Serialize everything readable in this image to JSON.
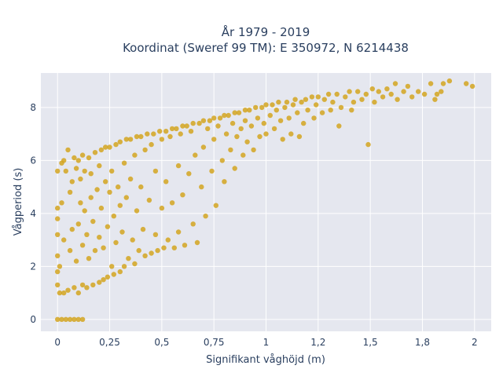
{
  "chart_data": {
    "type": "scatter",
    "title_lines": [
      "År 1979 - 2019",
      "Koordinat (Sweref 99 TM): E 350972, N 6214438"
    ],
    "xlabel": "Signifikant våghöjd (m)",
    "ylabel": "Vågperiod (s)",
    "xlim": [
      -0.08,
      2.08
    ],
    "ylim": [
      -0.45,
      9.3
    ],
    "xticks": [
      {
        "value": 0,
        "label": "0"
      },
      {
        "value": 0.25,
        "label": "0,25"
      },
      {
        "value": 0.5,
        "label": "0,5"
      },
      {
        "value": 0.75,
        "label": "0,75"
      },
      {
        "value": 1,
        "label": "1"
      },
      {
        "value": 1.25,
        "label": "1,2"
      },
      {
        "value": 1.5,
        "label": "1,5"
      },
      {
        "value": 1.75,
        "label": "1,8"
      },
      {
        "value": 2,
        "label": "2"
      }
    ],
    "yticks": [
      {
        "value": 0,
        "label": "0"
      },
      {
        "value": 2,
        "label": "2"
      },
      {
        "value": 4,
        "label": "4"
      },
      {
        "value": 6,
        "label": "6"
      },
      {
        "value": 8,
        "label": "8"
      }
    ],
    "grid": true,
    "colors": {
      "marker": "#D4A420",
      "plot_bg": "#E5E7EF",
      "grid": "#ffffff",
      "text": "#2a3f5f"
    },
    "points": [
      [
        0.0,
        0.0
      ],
      [
        0.02,
        0.0
      ],
      [
        0.04,
        0.0
      ],
      [
        0.06,
        0.0
      ],
      [
        0.08,
        0.0
      ],
      [
        0.1,
        0.0
      ],
      [
        0.12,
        0.0
      ],
      [
        0.0,
        1.3
      ],
      [
        0.0,
        1.8
      ],
      [
        0.0,
        2.4
      ],
      [
        0.0,
        3.2
      ],
      [
        0.0,
        3.8
      ],
      [
        0.0,
        4.2
      ],
      [
        0.0,
        5.6
      ],
      [
        0.01,
        1.0
      ],
      [
        0.01,
        2.0
      ],
      [
        0.02,
        4.4
      ],
      [
        0.02,
        5.9
      ],
      [
        0.03,
        1.0
      ],
      [
        0.03,
        3.0
      ],
      [
        0.03,
        6.0
      ],
      [
        0.04,
        5.6
      ],
      [
        0.05,
        6.4
      ],
      [
        0.05,
        1.1
      ],
      [
        0.06,
        2.6
      ],
      [
        0.06,
        4.8
      ],
      [
        0.07,
        5.2
      ],
      [
        0.07,
        3.4
      ],
      [
        0.08,
        1.2
      ],
      [
        0.08,
        6.1
      ],
      [
        0.09,
        5.7
      ],
      [
        0.09,
        2.2
      ],
      [
        0.1,
        1.0
      ],
      [
        0.1,
        3.6
      ],
      [
        0.1,
        6.0
      ],
      [
        0.11,
        4.4
      ],
      [
        0.11,
        5.3
      ],
      [
        0.12,
        1.3
      ],
      [
        0.12,
        2.8
      ],
      [
        0.12,
        6.2
      ],
      [
        0.13,
        4.1
      ],
      [
        0.13,
        5.6
      ],
      [
        0.14,
        1.2
      ],
      [
        0.14,
        3.2
      ],
      [
        0.15,
        6.1
      ],
      [
        0.15,
        2.3
      ],
      [
        0.16,
        4.6
      ],
      [
        0.16,
        5.5
      ],
      [
        0.17,
        1.3
      ],
      [
        0.17,
        3.7
      ],
      [
        0.18,
        6.3
      ],
      [
        0.18,
        2.6
      ],
      [
        0.19,
        4.9
      ],
      [
        0.2,
        1.4
      ],
      [
        0.2,
        3.1
      ],
      [
        0.2,
        5.8
      ],
      [
        0.21,
        6.4
      ],
      [
        0.21,
        4.2
      ],
      [
        0.22,
        1.5
      ],
      [
        0.22,
        2.7
      ],
      [
        0.23,
        5.2
      ],
      [
        0.23,
        6.5
      ],
      [
        0.24,
        3.5
      ],
      [
        0.24,
        1.6
      ],
      [
        0.25,
        6.5
      ],
      [
        0.25,
        4.8
      ],
      [
        0.26,
        2.0
      ],
      [
        0.26,
        5.6
      ],
      [
        0.27,
        1.7
      ],
      [
        0.27,
        3.9
      ],
      [
        0.28,
        6.6
      ],
      [
        0.28,
        2.9
      ],
      [
        0.29,
        5.0
      ],
      [
        0.3,
        1.8
      ],
      [
        0.3,
        4.3
      ],
      [
        0.3,
        6.7
      ],
      [
        0.31,
        3.3
      ],
      [
        0.32,
        2.0
      ],
      [
        0.32,
        5.9
      ],
      [
        0.33,
        6.8
      ],
      [
        0.33,
        4.6
      ],
      [
        0.34,
        2.3
      ],
      [
        0.35,
        6.8
      ],
      [
        0.35,
        5.3
      ],
      [
        0.36,
        3.0
      ],
      [
        0.37,
        2.1
      ],
      [
        0.37,
        6.2
      ],
      [
        0.38,
        6.9
      ],
      [
        0.38,
        4.1
      ],
      [
        0.39,
        2.6
      ],
      [
        0.4,
        6.9
      ],
      [
        0.4,
        5.0
      ],
      [
        0.41,
        3.4
      ],
      [
        0.42,
        2.4
      ],
      [
        0.42,
        6.4
      ],
      [
        0.43,
        7.0
      ],
      [
        0.44,
        4.5
      ],
      [
        0.45,
        2.5
      ],
      [
        0.45,
        6.6
      ],
      [
        0.46,
        7.0
      ],
      [
        0.47,
        3.2
      ],
      [
        0.47,
        5.6
      ],
      [
        0.48,
        2.6
      ],
      [
        0.49,
        7.1
      ],
      [
        0.5,
        6.8
      ],
      [
        0.5,
        4.2
      ],
      [
        0.51,
        2.7
      ],
      [
        0.52,
        7.1
      ],
      [
        0.52,
        5.2
      ],
      [
        0.53,
        3.0
      ],
      [
        0.54,
        6.9
      ],
      [
        0.55,
        7.2
      ],
      [
        0.55,
        4.4
      ],
      [
        0.56,
        2.7
      ],
      [
        0.57,
        7.2
      ],
      [
        0.58,
        5.8
      ],
      [
        0.58,
        3.3
      ],
      [
        0.59,
        7.0
      ],
      [
        0.6,
        7.3
      ],
      [
        0.6,
        4.7
      ],
      [
        0.61,
        2.8
      ],
      [
        0.62,
        7.3
      ],
      [
        0.63,
        5.5
      ],
      [
        0.64,
        7.1
      ],
      [
        0.65,
        7.4
      ],
      [
        0.65,
        3.6
      ],
      [
        0.66,
        6.2
      ],
      [
        0.67,
        2.9
      ],
      [
        0.68,
        7.4
      ],
      [
        0.69,
        5.0
      ],
      [
        0.7,
        7.5
      ],
      [
        0.7,
        6.5
      ],
      [
        0.71,
        3.9
      ],
      [
        0.72,
        7.2
      ],
      [
        0.73,
        7.5
      ],
      [
        0.74,
        5.6
      ],
      [
        0.75,
        7.6
      ],
      [
        0.75,
        6.8
      ],
      [
        0.76,
        4.3
      ],
      [
        0.77,
        7.3
      ],
      [
        0.78,
        7.6
      ],
      [
        0.79,
        6.0
      ],
      [
        0.8,
        7.7
      ],
      [
        0.8,
        5.2
      ],
      [
        0.81,
        7.0
      ],
      [
        0.82,
        7.7
      ],
      [
        0.83,
        6.4
      ],
      [
        0.84,
        7.4
      ],
      [
        0.85,
        7.8
      ],
      [
        0.85,
        5.7
      ],
      [
        0.86,
        6.9
      ],
      [
        0.87,
        7.8
      ],
      [
        0.88,
        7.2
      ],
      [
        0.89,
        6.2
      ],
      [
        0.9,
        7.9
      ],
      [
        0.9,
        7.5
      ],
      [
        0.91,
        6.7
      ],
      [
        0.92,
        7.9
      ],
      [
        0.93,
        7.3
      ],
      [
        0.94,
        6.4
      ],
      [
        0.95,
        8.0
      ],
      [
        0.96,
        7.6
      ],
      [
        0.97,
        6.9
      ],
      [
        0.98,
        8.0
      ],
      [
        0.99,
        7.4
      ],
      [
        1.0,
        8.1
      ],
      [
        1.0,
        7.0
      ],
      [
        1.02,
        7.7
      ],
      [
        1.03,
        8.1
      ],
      [
        1.04,
        7.2
      ],
      [
        1.05,
        7.9
      ],
      [
        1.06,
        8.2
      ],
      [
        1.07,
        7.5
      ],
      [
        1.08,
        6.8
      ],
      [
        1.09,
        8.0
      ],
      [
        1.1,
        8.2
      ],
      [
        1.11,
        7.6
      ],
      [
        1.12,
        7.0
      ],
      [
        1.13,
        8.1
      ],
      [
        1.14,
        8.3
      ],
      [
        1.15,
        7.8
      ],
      [
        1.16,
        6.9
      ],
      [
        1.17,
        8.2
      ],
      [
        1.18,
        7.4
      ],
      [
        1.19,
        8.3
      ],
      [
        1.2,
        7.9
      ],
      [
        1.22,
        8.4
      ],
      [
        1.23,
        7.6
      ],
      [
        1.24,
        8.1
      ],
      [
        1.25,
        8.4
      ],
      [
        1.27,
        7.8
      ],
      [
        1.28,
        8.3
      ],
      [
        1.3,
        8.5
      ],
      [
        1.31,
        7.9
      ],
      [
        1.32,
        8.2
      ],
      [
        1.34,
        8.5
      ],
      [
        1.35,
        7.3
      ],
      [
        1.36,
        8.0
      ],
      [
        1.38,
        8.4
      ],
      [
        1.4,
        8.6
      ],
      [
        1.41,
        7.9
      ],
      [
        1.42,
        8.2
      ],
      [
        1.44,
        8.6
      ],
      [
        1.46,
        8.3
      ],
      [
        1.48,
        8.5
      ],
      [
        1.49,
        6.6
      ],
      [
        1.51,
        8.7
      ],
      [
        1.52,
        8.2
      ],
      [
        1.54,
        8.6
      ],
      [
        1.56,
        8.4
      ],
      [
        1.58,
        8.7
      ],
      [
        1.6,
        8.5
      ],
      [
        1.62,
        8.9
      ],
      [
        1.63,
        8.3
      ],
      [
        1.66,
        8.6
      ],
      [
        1.68,
        8.8
      ],
      [
        1.7,
        8.4
      ],
      [
        1.73,
        8.6
      ],
      [
        1.76,
        8.5
      ],
      [
        1.79,
        8.9
      ],
      [
        1.81,
        8.3
      ],
      [
        1.84,
        8.6
      ],
      [
        1.88,
        9.0
      ],
      [
        1.99,
        8.8
      ],
      [
        1.96,
        8.9
      ],
      [
        1.85,
        8.9
      ],
      [
        1.82,
        8.5
      ]
    ]
  }
}
